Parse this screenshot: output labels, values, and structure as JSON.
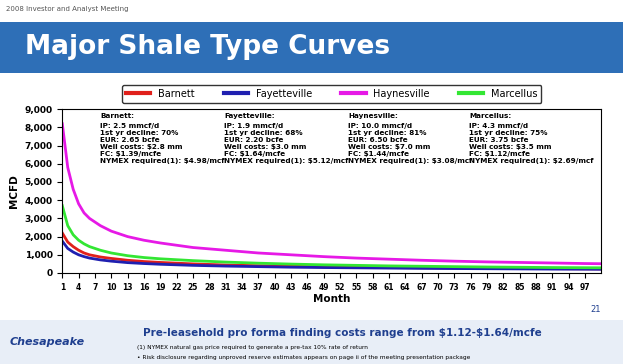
{
  "chart_data": {
    "type": "line",
    "title": "Major Shale Type Curves",
    "x_label": "Month",
    "y_label": "MCFD",
    "x": [
      1,
      2,
      3,
      4,
      5,
      6,
      8,
      10,
      13,
      16,
      19,
      25,
      31,
      37,
      43,
      49,
      55,
      61,
      67,
      73,
      79,
      85,
      91,
      97,
      100
    ],
    "series": [
      {
        "name": "Barnett",
        "color": "#e0201b",
        "values": [
          2200,
          1700,
          1450,
          1250,
          1100,
          1000,
          880,
          800,
          700,
          630,
          580,
          500,
          440,
          400,
          370,
          340,
          320,
          300,
          285,
          270,
          260,
          250,
          240,
          230,
          225
        ]
      },
      {
        "name": "Fayetteville",
        "color": "#1f1fb0",
        "values": [
          1750,
          1350,
          1150,
          1000,
          900,
          820,
          720,
          650,
          570,
          520,
          480,
          420,
          380,
          350,
          320,
          300,
          285,
          270,
          255,
          245,
          235,
          225,
          215,
          210,
          205
        ]
      },
      {
        "name": "Haynesville",
        "color": "#e619e6",
        "values": [
          8200,
          5800,
          4600,
          3800,
          3300,
          3000,
          2600,
          2300,
          2000,
          1800,
          1650,
          1400,
          1250,
          1100,
          1000,
          900,
          820,
          760,
          700,
          650,
          610,
          580,
          550,
          520,
          510
        ]
      },
      {
        "name": "Marcellus",
        "color": "#33e633",
        "values": [
          3700,
          2600,
          2100,
          1800,
          1600,
          1450,
          1250,
          1100,
          950,
          850,
          780,
          680,
          600,
          540,
          490,
          450,
          420,
          390,
          370,
          350,
          330,
          315,
          300,
          290,
          285
        ]
      }
    ],
    "xlim": [
      1,
      100
    ],
    "xticks": [
      1,
      4,
      7,
      10,
      13,
      16,
      19,
      22,
      25,
      28,
      31,
      34,
      37,
      40,
      43,
      46,
      49,
      52,
      55,
      58,
      61,
      64,
      67,
      70,
      73,
      76,
      79,
      82,
      85,
      88,
      91,
      94,
      97
    ],
    "ylim": [
      0,
      9000
    ],
    "yticks": [
      0,
      {
        "value": 1000,
        "label": "1,000"
      },
      {
        "value": 2000,
        "label": "2,000"
      },
      {
        "value": 3000,
        "label": "3,000"
      },
      {
        "value": 4000,
        "label": "4,000"
      },
      {
        "value": 5000,
        "label": "5,000"
      },
      {
        "value": 6000,
        "label": "6,000"
      },
      {
        "value": 7000,
        "label": "7,000"
      },
      {
        "value": 8000,
        "label": "8,000"
      },
      {
        "value": 9000,
        "label": "9,000"
      }
    ],
    "grid": false,
    "legend": "lower center",
    "annotations": [
      {
        "title": "Barnett:",
        "lines": [
          "IP: 2.5 mmcf/d",
          "1st yr decline: 70%",
          "EUR: 2.65 bcfe",
          "Well costs: $2.8 mm",
          "FC: $1.39/mcfe",
          "NYMEX required(1): $4.98/mcf"
        ]
      },
      {
        "title": "Fayetteville:",
        "lines": [
          "IP: 1.9 mmcf/d",
          "1st yr decline: 68%",
          "EUR: 2.20 bcfe",
          "Well costs: $3.0 mm",
          "FC: $1.64/mcfe",
          "NYMEX required(1): $5.12/mcf"
        ]
      },
      {
        "title": "Haynesville:",
        "lines": [
          "IP: 10.0 mmcf/d",
          "1st yr decline: 81%",
          "EUR: 6.50 bcfe",
          "Well costs: $7.0 mm",
          "FC: $1.44/mcfe",
          "NYMEX required(1): $3.08/mcf"
        ]
      },
      {
        "title": "Marcellus:",
        "lines": [
          "IP: 4.3 mmcf/d",
          "1st yr decline: 75%",
          "EUR: 3.75 bcfe",
          "Well costs: $3.5 mm",
          "FC: $1.12/mcfe",
          "NYMEX required(1): $2.69/mcf"
        ]
      }
    ]
  },
  "slide": {
    "header": "2008 Investor and Analyst Meeting",
    "footer": "Pre-leasehold pro forma finding costs range from $1.12-$1.64/mcfe",
    "notes": [
      "(1) NYMEX natural gas price required to generate a pre-tax 10% rate of return",
      "• Risk disclosure regarding unproved reserve estimates appears on page ii of the meeting presentation package"
    ],
    "page": "21",
    "logo": "Chesapeake"
  }
}
